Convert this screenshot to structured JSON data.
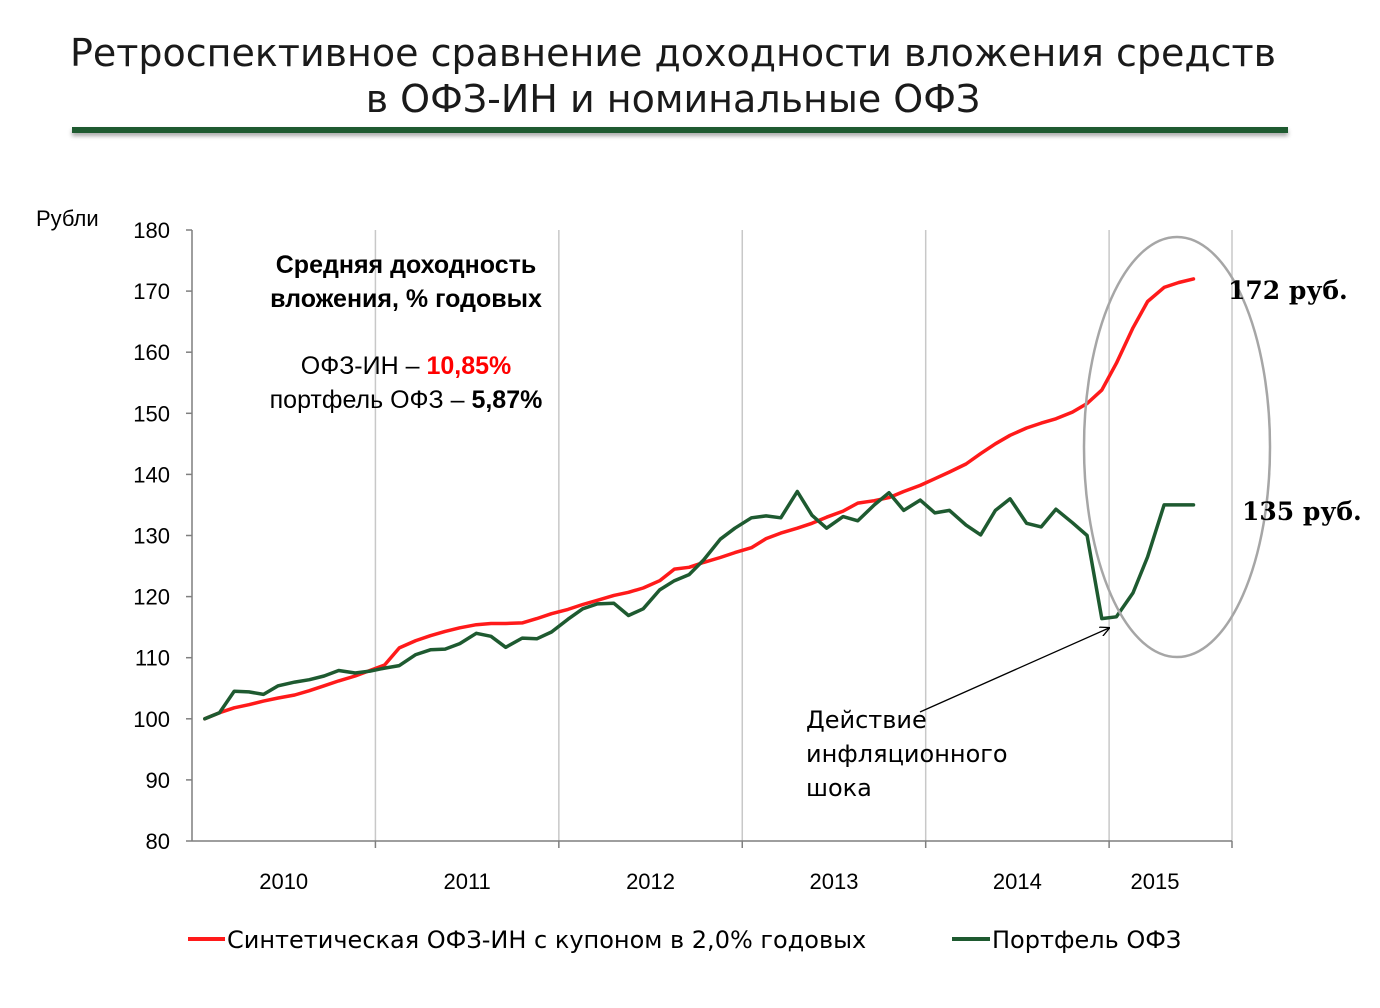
{
  "header": {
    "title_line1": "Ретроспективное сравнение доходности вложения средств",
    "title_line2": "в ОФЗ-ИН и номинальные ОФЗ"
  },
  "colors": {
    "red_series": "#ff1a1a",
    "green_series": "#1e5a30",
    "title_rule": "#1e5a30",
    "grid": "#c8c8c8",
    "ellipse": "#a6a6a6",
    "highlight_red": "#ff0000"
  },
  "chart_data": {
    "type": "line",
    "ylabel": "Рубли",
    "ylim": [
      80,
      180
    ],
    "yticks": [
      80,
      90,
      100,
      110,
      120,
      130,
      140,
      150,
      160,
      170,
      180
    ],
    "xlim": [
      2009.33,
      2015.0
    ],
    "x_tick_labels": [
      {
        "label": "2010",
        "x": 2009.83
      },
      {
        "label": "2011",
        "x": 2010.83
      },
      {
        "label": "2012",
        "x": 2011.83
      },
      {
        "label": "2013",
        "x": 2012.83
      },
      {
        "label": "2014",
        "x": 2013.83
      },
      {
        "label": "2015",
        "x": 2014.58
      }
    ],
    "year_dividers": [
      2010.33,
      2011.33,
      2012.33,
      2013.33,
      2014.33
    ],
    "grid": "vertical",
    "legend_position": "bottom",
    "series": [
      {
        "name": "Синтетическая ОФЗ-ИН с купоном в 2,0% годовых",
        "color": "#ff1a1a",
        "x": [
          2009.4,
          2009.48,
          2009.56,
          2009.64,
          2009.72,
          2009.8,
          2009.89,
          2009.97,
          2010.05,
          2010.13,
          2010.22,
          2010.3,
          2010.38,
          2010.46,
          2010.55,
          2010.63,
          2010.71,
          2010.79,
          2010.88,
          2010.96,
          2011.04,
          2011.13,
          2011.21,
          2011.29,
          2011.38,
          2011.46,
          2011.54,
          2011.63,
          2011.71,
          2011.79,
          2011.88,
          2011.96,
          2012.04,
          2012.12,
          2012.21,
          2012.29,
          2012.38,
          2012.46,
          2012.54,
          2012.63,
          2012.71,
          2012.79,
          2012.88,
          2012.96,
          2013.05,
          2013.13,
          2013.21,
          2013.3,
          2013.38,
          2013.46,
          2013.55,
          2013.63,
          2013.71,
          2013.79,
          2013.88,
          2013.96,
          2014.04,
          2014.13,
          2014.21,
          2014.29,
          2014.37,
          2014.46,
          2014.54,
          2014.63,
          2014.71,
          2014.79
        ],
        "values": [
          100.0,
          101.0,
          101.8,
          102.3,
          102.9,
          103.4,
          103.9,
          104.6,
          105.4,
          106.2,
          107.0,
          107.9,
          108.8,
          111.6,
          112.8,
          113.6,
          114.3,
          114.9,
          115.4,
          115.6,
          115.6,
          115.7,
          116.4,
          117.2,
          117.9,
          118.7,
          119.4,
          120.2,
          120.7,
          121.4,
          122.6,
          124.5,
          124.8,
          125.6,
          126.4,
          127.2,
          128.0,
          129.5,
          130.4,
          131.2,
          132.0,
          133.0,
          134.0,
          135.3,
          135.7,
          136.2,
          137.2,
          138.2,
          139.3,
          140.4,
          141.7,
          143.4,
          145.0,
          146.4,
          147.6,
          148.4,
          149.1,
          150.2,
          151.6,
          153.8,
          158.2,
          164.0,
          168.3,
          170.6,
          171.4,
          172.0
        ]
      },
      {
        "name": "Портфель ОФЗ",
        "color": "#1e5a30",
        "x": [
          2009.4,
          2009.48,
          2009.56,
          2009.64,
          2009.72,
          2009.8,
          2009.89,
          2009.97,
          2010.05,
          2010.13,
          2010.22,
          2010.3,
          2010.38,
          2010.46,
          2010.55,
          2010.63,
          2010.71,
          2010.79,
          2010.88,
          2010.96,
          2011.04,
          2011.13,
          2011.21,
          2011.29,
          2011.38,
          2011.46,
          2011.54,
          2011.63,
          2011.71,
          2011.79,
          2011.88,
          2011.96,
          2012.04,
          2012.12,
          2012.21,
          2012.29,
          2012.38,
          2012.46,
          2012.54,
          2012.63,
          2012.71,
          2012.79,
          2012.88,
          2012.96,
          2013.05,
          2013.13,
          2013.21,
          2013.3,
          2013.38,
          2013.46,
          2013.55,
          2013.63,
          2013.71,
          2013.79,
          2013.88,
          2013.96,
          2014.04,
          2014.13,
          2014.21,
          2014.29,
          2014.37,
          2014.46,
          2014.54,
          2014.63,
          2014.71,
          2014.79
        ],
        "values": [
          100.0,
          101.0,
          104.5,
          104.4,
          104.0,
          105.4,
          106.0,
          106.4,
          107.0,
          107.9,
          107.5,
          107.8,
          108.3,
          108.7,
          110.5,
          111.3,
          111.4,
          112.3,
          114.0,
          113.5,
          111.7,
          113.2,
          113.1,
          114.2,
          116.3,
          118.0,
          118.8,
          118.9,
          116.9,
          118.0,
          121.1,
          122.6,
          123.6,
          126.0,
          129.4,
          131.2,
          132.9,
          133.2,
          132.9,
          137.2,
          133.3,
          131.2,
          133.1,
          132.4,
          135.0,
          137.0,
          134.1,
          135.8,
          133.7,
          134.1,
          131.7,
          130.1,
          134.1,
          136.0,
          132.0,
          131.4,
          134.3,
          132.1,
          130.0,
          116.4,
          116.7,
          120.6,
          126.5,
          135.0,
          135.0,
          135.0
        ]
      }
    ],
    "annotations": {
      "box_title_line1": "Средняя доходность",
      "box_title_line2": "вложения, % годовых",
      "ofz_in_label": "ОФЗ-ИН –",
      "ofz_in_value": "10,85%",
      "portfolio_label": "портфель ОФЗ –",
      "portfolio_value": "5,87%",
      "end_label_red": "172 руб.",
      "end_label_green": "135 руб.",
      "shock_line1": "Действие",
      "shock_line2": "инфляционного",
      "shock_line3": "шока"
    }
  }
}
